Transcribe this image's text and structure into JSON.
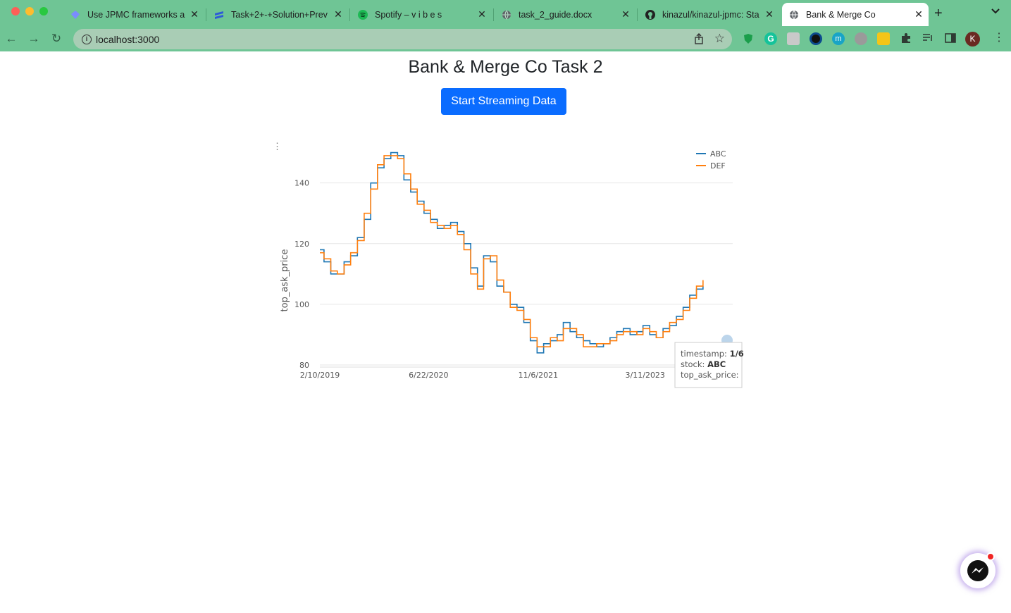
{
  "browser": {
    "tabs": [
      {
        "title": "Use JPMC frameworks a",
        "icon": "diamond-icon",
        "color": "#7b8cff"
      },
      {
        "title": "Task+2+-+Solution+Prev",
        "icon": "layers-icon",
        "color": "#2d5bd8"
      },
      {
        "title": "Spotify – v i b e s",
        "icon": "spotify-icon",
        "color": "#1db954"
      },
      {
        "title": "task_2_guide.docx",
        "icon": "globe-icon",
        "color": "#555555"
      },
      {
        "title": "kinazul/kinazul-jpmc: Sta",
        "icon": "github-icon",
        "color": "#222222"
      },
      {
        "title": "Bank & Merge Co",
        "icon": "globe-icon",
        "color": "#555555"
      }
    ],
    "url": "localhost:3000",
    "profile_initial": "K"
  },
  "page": {
    "title": "Bank & Merge Co Task 2",
    "button_label": "Start Streaming Data"
  },
  "chart_data": {
    "type": "line",
    "ylabel": "top_ask_price",
    "xlabel": "",
    "x_ticks": [
      "2/10/2019",
      "6/22/2020",
      "11/6/2021",
      "3/11/2023"
    ],
    "y_ticks": [
      80,
      100,
      120,
      140
    ],
    "ylim": [
      80,
      152
    ],
    "xlim": [
      "2/10/2019",
      "4/15/2024"
    ],
    "legend_position": "top-right",
    "series": [
      {
        "name": "ABC",
        "color": "#1f77b4",
        "points": [
          [
            "2/10/2019",
            118
          ],
          [
            "3/1/2019",
            114
          ],
          [
            "4/1/2019",
            110
          ],
          [
            "5/1/2019",
            110
          ],
          [
            "6/1/2019",
            114
          ],
          [
            "7/1/2019",
            116
          ],
          [
            "8/1/2019",
            122
          ],
          [
            "9/1/2019",
            128
          ],
          [
            "10/1/2019",
            140
          ],
          [
            "11/1/2019",
            145
          ],
          [
            "12/1/2019",
            148
          ],
          [
            "1/1/2020",
            150
          ],
          [
            "2/1/2020",
            149
          ],
          [
            "3/1/2020",
            141
          ],
          [
            "4/1/2020",
            137
          ],
          [
            "5/1/2020",
            134
          ],
          [
            "6/1/2020",
            130
          ],
          [
            "7/1/2020",
            128
          ],
          [
            "8/1/2020",
            125
          ],
          [
            "9/1/2020",
            126
          ],
          [
            "10/1/2020",
            127
          ],
          [
            "11/1/2020",
            124
          ],
          [
            "12/1/2020",
            120
          ],
          [
            "1/1/2021",
            112
          ],
          [
            "2/1/2021",
            106
          ],
          [
            "3/1/2021",
            116
          ],
          [
            "4/1/2021",
            114
          ],
          [
            "5/1/2021",
            106
          ],
          [
            "6/1/2021",
            104
          ],
          [
            "7/1/2021",
            100
          ],
          [
            "8/1/2021",
            99
          ],
          [
            "9/1/2021",
            94
          ],
          [
            "10/1/2021",
            88
          ],
          [
            "11/1/2021",
            84
          ],
          [
            "12/1/2021",
            87
          ],
          [
            "1/1/2022",
            88
          ],
          [
            "2/1/2022",
            90
          ],
          [
            "3/1/2022",
            94
          ],
          [
            "4/1/2022",
            91
          ],
          [
            "5/1/2022",
            89
          ],
          [
            "6/1/2022",
            88
          ],
          [
            "7/1/2022",
            87
          ],
          [
            "8/1/2022",
            86
          ],
          [
            "9/1/2022",
            87
          ],
          [
            "10/1/2022",
            89
          ],
          [
            "11/1/2022",
            91
          ],
          [
            "12/1/2022",
            92
          ],
          [
            "1/1/2023",
            90
          ],
          [
            "2/1/2023",
            91
          ],
          [
            "3/1/2023",
            93
          ],
          [
            "4/1/2023",
            90
          ],
          [
            "5/1/2023",
            89
          ],
          [
            "6/1/2023",
            92
          ],
          [
            "7/1/2023",
            93
          ],
          [
            "8/1/2023",
            96
          ],
          [
            "9/1/2023",
            99
          ],
          [
            "10/1/2023",
            103
          ],
          [
            "11/1/2023",
            105
          ],
          [
            "12/1/2023",
            106
          ]
        ]
      },
      {
        "name": "DEF",
        "color": "#ff7f0e",
        "points": [
          [
            "2/10/2019",
            117
          ],
          [
            "3/1/2019",
            115
          ],
          [
            "4/1/2019",
            111
          ],
          [
            "5/1/2019",
            110
          ],
          [
            "6/1/2019",
            113
          ],
          [
            "7/1/2019",
            117
          ],
          [
            "8/1/2019",
            121
          ],
          [
            "9/1/2019",
            130
          ],
          [
            "10/1/2019",
            138
          ],
          [
            "11/1/2019",
            146
          ],
          [
            "12/1/2019",
            149
          ],
          [
            "1/1/2020",
            149
          ],
          [
            "2/1/2020",
            148
          ],
          [
            "3/1/2020",
            143
          ],
          [
            "4/1/2020",
            138
          ],
          [
            "5/1/2020",
            133
          ],
          [
            "6/1/2020",
            131
          ],
          [
            "7/1/2020",
            127
          ],
          [
            "8/1/2020",
            126
          ],
          [
            "9/1/2020",
            125
          ],
          [
            "10/1/2020",
            126
          ],
          [
            "11/1/2020",
            123
          ],
          [
            "12/1/2020",
            118
          ],
          [
            "1/1/2021",
            110
          ],
          [
            "2/1/2021",
            105
          ],
          [
            "3/1/2021",
            115
          ],
          [
            "4/1/2021",
            116
          ],
          [
            "5/1/2021",
            108
          ],
          [
            "6/1/2021",
            104
          ],
          [
            "7/1/2021",
            99
          ],
          [
            "8/1/2021",
            98
          ],
          [
            "9/1/2021",
            95
          ],
          [
            "10/1/2021",
            89
          ],
          [
            "11/1/2021",
            86
          ],
          [
            "12/1/2021",
            86
          ],
          [
            "1/1/2022",
            89
          ],
          [
            "2/1/2022",
            88
          ],
          [
            "3/1/2022",
            92
          ],
          [
            "4/1/2022",
            92
          ],
          [
            "5/1/2022",
            90
          ],
          [
            "6/1/2022",
            86
          ],
          [
            "7/1/2022",
            86
          ],
          [
            "8/1/2022",
            87
          ],
          [
            "9/1/2022",
            87
          ],
          [
            "10/1/2022",
            88
          ],
          [
            "11/1/2022",
            90
          ],
          [
            "12/1/2022",
            91
          ],
          [
            "1/1/2023",
            91
          ],
          [
            "2/1/2023",
            90
          ],
          [
            "3/1/2023",
            92
          ],
          [
            "4/1/2023",
            91
          ],
          [
            "5/1/2023",
            89
          ],
          [
            "6/1/2023",
            91
          ],
          [
            "7/1/2023",
            94
          ],
          [
            "8/1/2023",
            95
          ],
          [
            "9/1/2023",
            98
          ],
          [
            "10/1/2023",
            102
          ],
          [
            "11/1/2023",
            106
          ],
          [
            "12/1/2023",
            108
          ]
        ]
      }
    ],
    "tooltip": {
      "lines": [
        {
          "key": "timestamp: ",
          "value": "1/6"
        },
        {
          "key": "stock: ",
          "value": "ABC"
        },
        {
          "key": "top_ask_price: ",
          "value": ""
        }
      ]
    }
  }
}
